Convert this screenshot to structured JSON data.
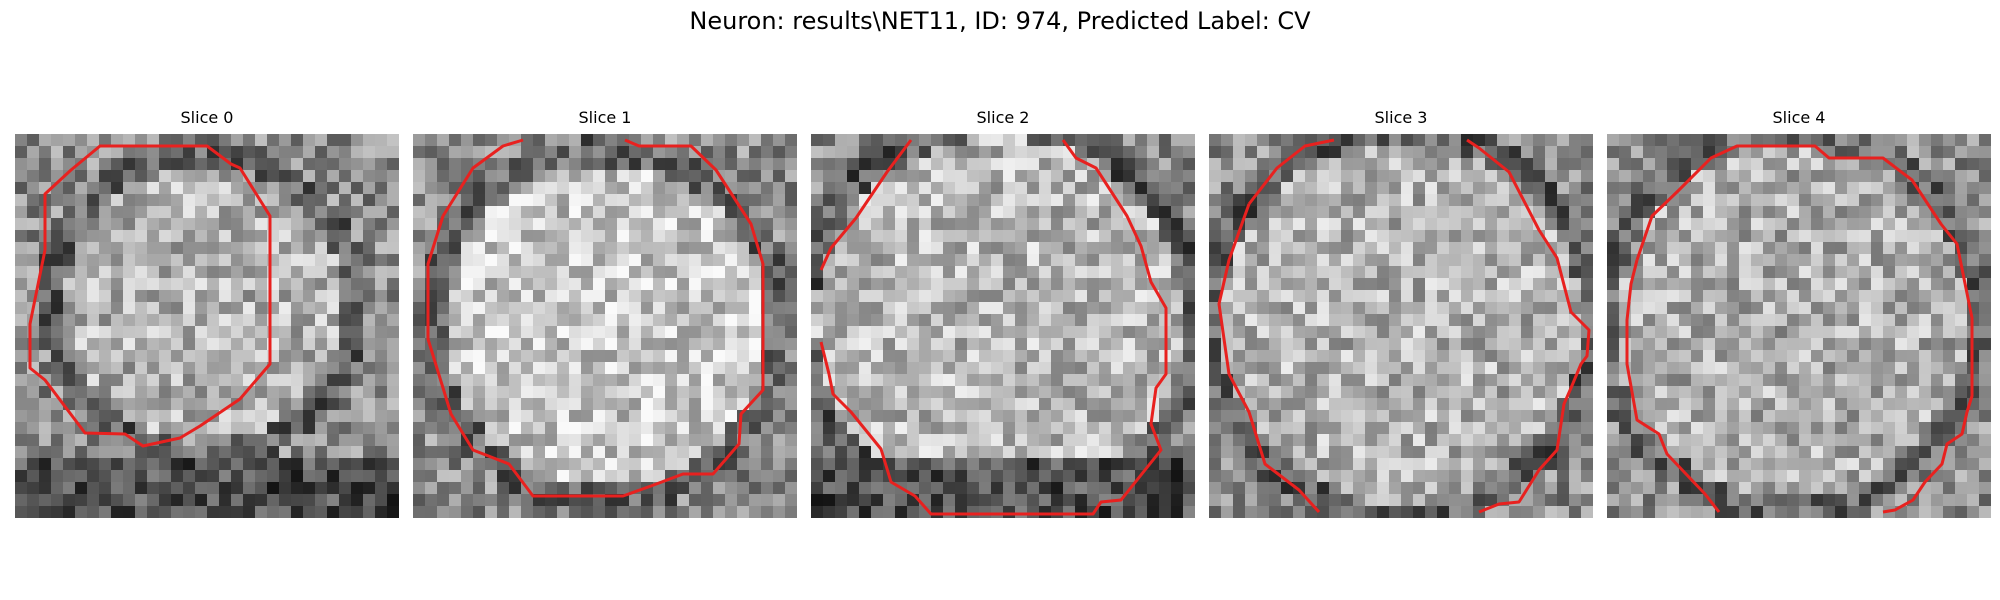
{
  "figure": {
    "title": "Neuron: results\\NET11, ID: 974, Predicted Label: CV"
  },
  "slices": [
    {
      "label": "Slice 0"
    },
    {
      "label": "Slice 1"
    },
    {
      "label": "Slice 2"
    },
    {
      "label": "Slice 3"
    },
    {
      "label": "Slice 4"
    }
  ],
  "colors": {
    "contour": "#e8211f",
    "background": "#ffffff"
  },
  "image": {
    "grid_size": 32,
    "colormap": "gray"
  }
}
